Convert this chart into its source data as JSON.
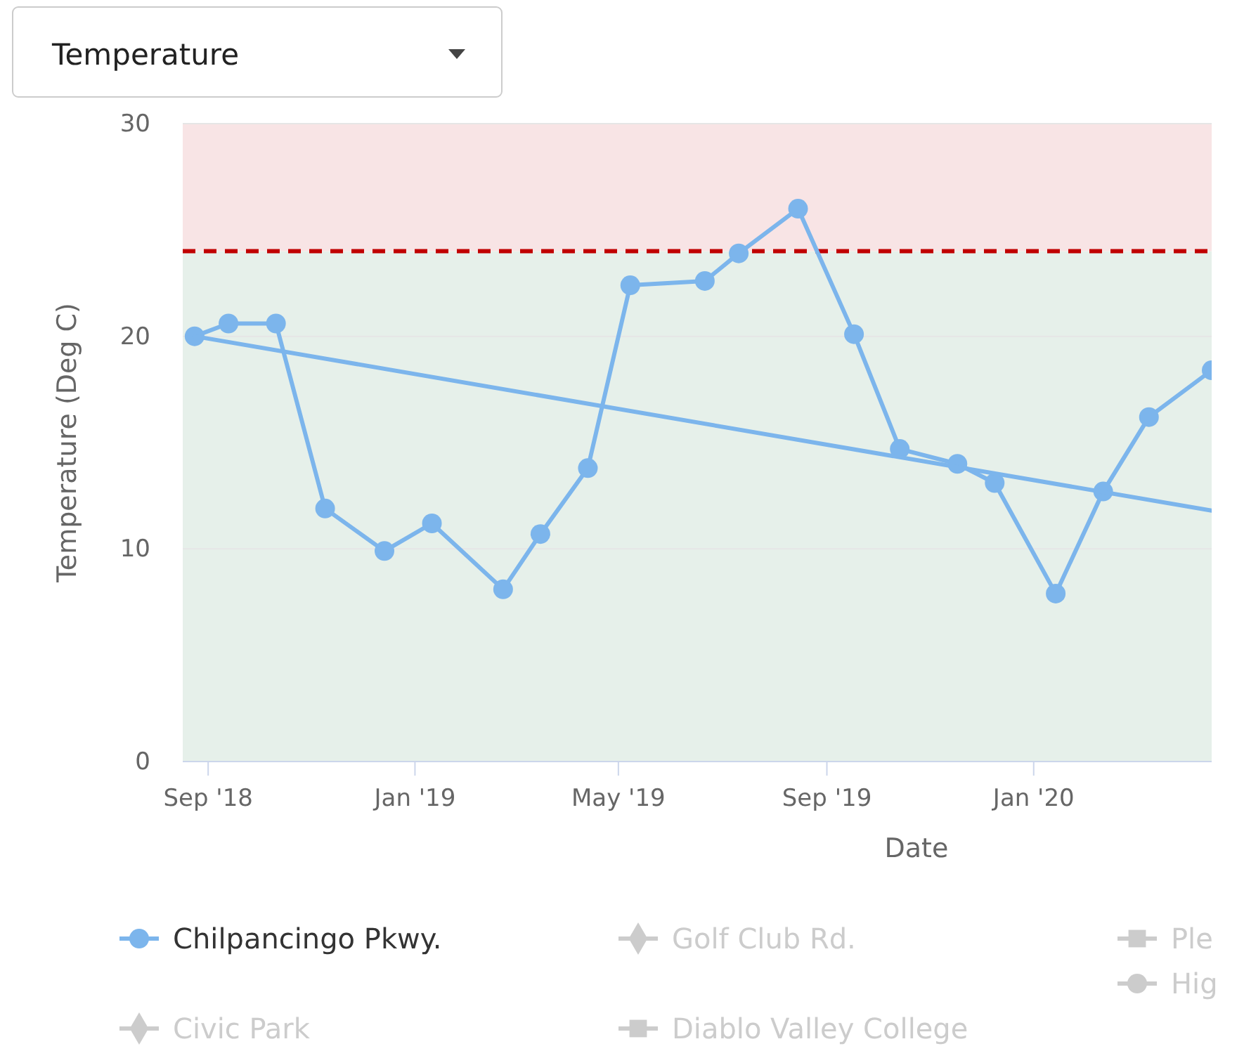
{
  "chart_data": {
    "type": "line",
    "xlabel": "Date",
    "ylabel": "Temperature (Deg C)",
    "annotations": [
      "Temperature"
    ],
    "xlim": [
      "2018-08-17",
      "2020-04-15"
    ],
    "xticks": [
      {
        "value": "2018-09-01",
        "label": "Sep '18"
      },
      {
        "value": "2019-01-01",
        "label": "Jan '19"
      },
      {
        "value": "2019-05-01",
        "label": "May '19"
      },
      {
        "value": "2019-09-01",
        "label": "Sep '19"
      },
      {
        "value": "2020-01-01",
        "label": "Jan '20"
      }
    ],
    "ylim": [
      0,
      30
    ],
    "yticks": [
      0,
      10,
      20,
      30
    ],
    "grid": "y",
    "legend": "bottom",
    "marker": "circle",
    "line_style": "solid",
    "bands": [
      {
        "axis": "y",
        "from": 0,
        "to": 24,
        "color": "#e6f0ea"
      },
      {
        "axis": "y",
        "from": 24,
        "to": 30,
        "color": "#f8e4e5"
      }
    ],
    "ref_lines": [
      {
        "axis": "y",
        "value": 24,
        "color": "#c00000",
        "line_style": "dashed"
      }
    ],
    "series": [
      {
        "name": "Chilpancingo Pkwy.",
        "color": "#7cb5ec",
        "x": [
          "2018-08-24",
          "2018-09-13",
          "2018-10-11",
          "2018-11-09",
          "2018-12-14",
          "2019-01-11",
          "2019-02-22",
          "2019-03-16",
          "2019-04-13",
          "2019-05-08",
          "2019-06-21",
          "2019-07-11",
          "2019-08-15",
          "2019-09-17",
          "2019-10-14",
          "2019-11-17",
          "2019-12-09",
          "2020-01-14",
          "2020-02-11",
          "2020-03-09",
          "2020-04-15"
        ],
        "values": [
          20.0,
          20.6,
          20.6,
          11.9,
          9.9,
          11.2,
          8.1,
          10.7,
          13.8,
          22.4,
          22.6,
          23.9,
          26.0,
          20.1,
          14.7,
          14.0,
          13.1,
          7.9,
          12.7,
          16.2,
          18.4
        ]
      },
      {
        "type": "line",
        "color": "#7cb5ec",
        "marker": "none",
        "x": [
          "2018-08-24",
          "2020-04-15"
        ],
        "values": [
          20.0,
          11.8
        ]
      },
      {
        "name": "Golf Club Rd.",
        "color": "#cccccc",
        "marker": "diamond"
      },
      {
        "name": "Ple",
        "color": "#cccccc",
        "marker": "square"
      },
      {
        "name": "Hig",
        "color": "#cccccc",
        "marker": "circle"
      },
      {
        "name": "Civic Park",
        "color": "#cccccc",
        "marker": "diamond"
      },
      {
        "name": "Diablo Valley College",
        "color": "#cccccc",
        "marker": "square"
      }
    ]
  }
}
